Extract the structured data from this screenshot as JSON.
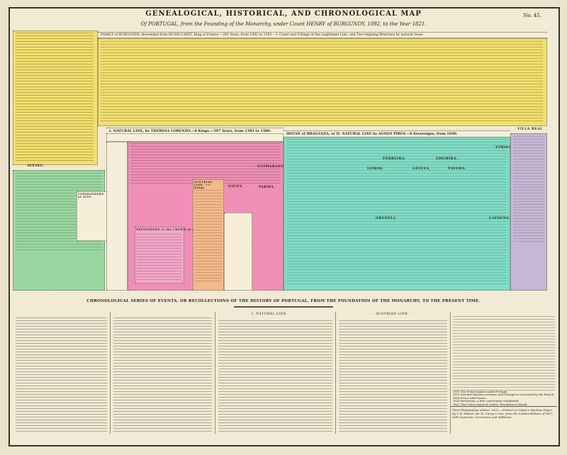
{
  "header": {
    "title": "GENEALOGICAL, HISTORICAL, AND CHRONOLOGICAL MAP",
    "subtitle": "Of PORTUGAL, from the Founding of the Monarchy, under Count HENRY of BURGUNDY, 1092, to the Year 1821.",
    "plate_number": "No. 45."
  },
  "sections": {
    "burgundy": "FAMILY of BURGUNDY, descended from HUGH CAPET, King of France.—291 Years, from 1092 to 1383.—1 Count and 9 Kings of the Legitimate Line, and Two reigning Branches by natural Issue.",
    "natural_line": "I. NATURAL LINE, by THERESA LORENZO.—8 Kings.—197 Years, from 1383 to 1580.",
    "braganza": "HOUSE of BRAGANZA, or II. NATURAL LINE by AGNES PIRES.—6 Sovereigns, from 1640.",
    "villa_real": "VILLA REAL",
    "aveiro": "AVEIRO.",
    "commanders": "COMMANDERS of AVIS.",
    "austrian": "AUSTRIAN LINE. —3 Kings.",
    "pretenders": "PRETENDERS to the CROWN of PORTUGAL.",
    "guimaraens": "GUIMARAENS.",
    "parma": "PARMA.",
    "savoy": "SAVOY.",
    "ferreira": "FERREIRA.",
    "odemira": "ODEMIRA.",
    "lemos": "LEMOS.",
    "gelves": "GELVES.",
    "vimioso": "VIMIOSO.",
    "tavora": "TAVORA.",
    "orgnell": "ORGNELL.",
    "lafoens": "LAFOENS."
  },
  "chronology": {
    "heading": "CHRONOLOGICAL SERIES OF EVENTS, OR RECOLLECTIONS OF THE HISTORY OF PORTUGAL, FROM THE FOUNDATION OF THE MONARCHY, TO THE PRESENT TIME.",
    "col_heads": [
      "I. NATURAL LINE.",
      "AUSTRIAN LINE."
    ],
    "entries_right": [
      "1810 The French again invade Portugal.",
      "1811 Marshal Massena retreats, and Portugal is evacuated by the French.",
      "1814 Peace with France.",
      "1820 Revolution; a free constitution established.",
      "1821 The Cortes meets at Lisbon. Revolution in Brazil."
    ],
    "imprint": "Third Philadelphia edition, 1823.—Printed on Gilpin's Machine Paper, by T. H. Palmer, for M. Carey & Son, from the London Edition of 1817, with numerous corrections and additions."
  },
  "colors": {
    "yellow": "#f1df6e",
    "pink": "#ef8fb6",
    "teal": "#7fdcc6",
    "green": "#98d8a0",
    "violet": "#c4b8d6",
    "orange": "#f3b98a",
    "paper": "#f1ead4"
  }
}
